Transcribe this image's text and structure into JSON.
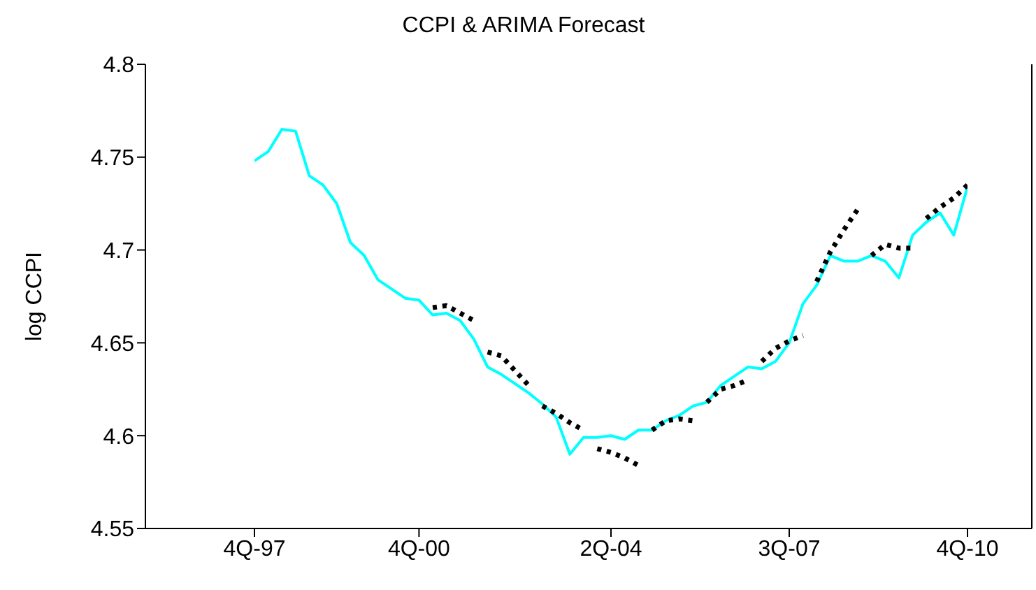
{
  "chart_data": {
    "type": "line",
    "title": "CCPI & ARIMA Forecast",
    "ylabel": "log CCPI",
    "categories": [
      "4Q-97",
      null,
      null,
      null,
      null,
      null,
      null,
      null,
      null,
      null,
      null,
      null,
      "4Q-00",
      null,
      null,
      null,
      null,
      null,
      null,
      null,
      null,
      null,
      null,
      null,
      null,
      null,
      "2Q-04",
      null,
      null,
      null,
      null,
      null,
      null,
      null,
      null,
      null,
      null,
      null,
      null,
      "3Q-07",
      null,
      null,
      null,
      null,
      null,
      null,
      null,
      null,
      null,
      null,
      null,
      null,
      "4Q-10"
    ],
    "ylim": [
      4.55,
      4.8
    ],
    "yticks": [
      4.55,
      4.6,
      4.65,
      4.7,
      4.75,
      4.8
    ],
    "grid": false,
    "marker": "none",
    "series": [
      {
        "color": "#00ffff",
        "line_style": "solid",
        "values": [
          4.748,
          4.753,
          4.765,
          4.764,
          4.74,
          4.735,
          4.725,
          4.704,
          4.697,
          4.684,
          4.679,
          4.674,
          4.673,
          4.665,
          4.666,
          4.662,
          4.652,
          4.637,
          4.633,
          4.628,
          4.623,
          4.617,
          4.61,
          4.59,
          4.599,
          4.599,
          4.6,
          4.598,
          4.603,
          4.603,
          4.608,
          4.611,
          4.616,
          4.618,
          4.627,
          4.632,
          4.637,
          4.636,
          4.64,
          4.65,
          4.671,
          4.681,
          4.697,
          4.694,
          4.694,
          4.697,
          4.694,
          4.685,
          4.708,
          4.715,
          4.72,
          4.708,
          4.734
        ]
      },
      {
        "color": "#000000",
        "line_style": "dotted",
        "values": [
          null,
          null,
          null,
          null,
          null,
          null,
          null,
          null,
          null,
          null,
          null,
          null,
          null,
          4.669,
          4.67,
          4.666,
          4.662,
          null,
          null,
          null,
          null,
          null,
          null,
          null,
          null,
          null,
          null,
          null,
          null,
          null,
          null,
          null,
          null,
          null,
          null,
          null,
          null,
          null,
          null,
          null,
          null,
          null,
          null,
          null,
          null,
          null,
          null,
          null,
          null,
          null,
          null,
          null,
          null
        ]
      },
      {
        "color": "#000000",
        "line_style": "dotted",
        "values": [
          null,
          null,
          null,
          null,
          null,
          null,
          null,
          null,
          null,
          null,
          null,
          null,
          null,
          null,
          null,
          null,
          null,
          4.645,
          4.643,
          4.635,
          4.627,
          null,
          null,
          null,
          null,
          null,
          null,
          null,
          null,
          null,
          null,
          null,
          null,
          null,
          null,
          null,
          null,
          null,
          null,
          null,
          null,
          null,
          null,
          null,
          null,
          null,
          null,
          null,
          null,
          null,
          null,
          null,
          null
        ]
      },
      {
        "color": "#000000",
        "line_style": "dotted",
        "values": [
          null,
          null,
          null,
          null,
          null,
          null,
          null,
          null,
          null,
          null,
          null,
          null,
          null,
          null,
          null,
          null,
          null,
          null,
          null,
          null,
          null,
          4.616,
          4.612,
          4.607,
          4.603,
          null,
          null,
          null,
          null,
          null,
          null,
          null,
          null,
          null,
          null,
          null,
          null,
          null,
          null,
          null,
          null,
          null,
          null,
          null,
          null,
          null,
          null,
          null,
          null,
          null,
          null,
          null,
          null
        ]
      },
      {
        "color": "#000000",
        "line_style": "dotted",
        "values": [
          null,
          null,
          null,
          null,
          null,
          null,
          null,
          null,
          null,
          null,
          null,
          null,
          null,
          null,
          null,
          null,
          null,
          null,
          null,
          null,
          null,
          null,
          null,
          null,
          null,
          4.593,
          4.591,
          4.588,
          4.584,
          null,
          null,
          null,
          null,
          null,
          null,
          null,
          null,
          null,
          null,
          null,
          null,
          null,
          null,
          null,
          null,
          null,
          null,
          null,
          null,
          null,
          null,
          null,
          null
        ]
      },
      {
        "color": "#000000",
        "line_style": "dotted",
        "values": [
          null,
          null,
          null,
          null,
          null,
          null,
          null,
          null,
          null,
          null,
          null,
          null,
          null,
          null,
          null,
          null,
          null,
          null,
          null,
          null,
          null,
          null,
          null,
          null,
          null,
          null,
          null,
          null,
          null,
          4.603,
          4.608,
          4.609,
          4.608,
          null,
          null,
          null,
          null,
          null,
          null,
          null,
          null,
          null,
          null,
          null,
          null,
          null,
          null,
          null,
          null,
          null,
          null,
          null,
          null
        ]
      },
      {
        "color": "#000000",
        "line_style": "dotted",
        "values": [
          null,
          null,
          null,
          null,
          null,
          null,
          null,
          null,
          null,
          null,
          null,
          null,
          null,
          null,
          null,
          null,
          null,
          null,
          null,
          null,
          null,
          null,
          null,
          null,
          null,
          null,
          null,
          null,
          null,
          null,
          null,
          null,
          null,
          4.618,
          4.625,
          4.627,
          4.63,
          null,
          null,
          null,
          null,
          null,
          null,
          null,
          null,
          null,
          null,
          null,
          null,
          null,
          null,
          null,
          null
        ]
      },
      {
        "color": "#000000",
        "line_style": "dotted",
        "values": [
          null,
          null,
          null,
          null,
          null,
          null,
          null,
          null,
          null,
          null,
          null,
          null,
          null,
          null,
          null,
          null,
          null,
          null,
          null,
          null,
          null,
          null,
          null,
          null,
          null,
          null,
          null,
          null,
          null,
          null,
          null,
          null,
          null,
          null,
          null,
          null,
          null,
          4.64,
          4.647,
          4.651,
          4.654,
          null,
          null,
          null,
          null,
          null,
          null,
          null,
          null,
          null,
          null,
          null,
          null
        ]
      },
      {
        "color": "#000000",
        "line_style": "dotted",
        "values": [
          null,
          null,
          null,
          null,
          null,
          null,
          null,
          null,
          null,
          null,
          null,
          null,
          null,
          null,
          null,
          null,
          null,
          null,
          null,
          null,
          null,
          null,
          null,
          null,
          null,
          null,
          null,
          null,
          null,
          null,
          null,
          null,
          null,
          null,
          null,
          null,
          null,
          null,
          null,
          null,
          null,
          4.683,
          4.699,
          4.711,
          4.722,
          null,
          null,
          null,
          null,
          null,
          null,
          null,
          null
        ]
      },
      {
        "color": "#000000",
        "line_style": "dotted",
        "values": [
          null,
          null,
          null,
          null,
          null,
          null,
          null,
          null,
          null,
          null,
          null,
          null,
          null,
          null,
          null,
          null,
          null,
          null,
          null,
          null,
          null,
          null,
          null,
          null,
          null,
          null,
          null,
          null,
          null,
          null,
          null,
          null,
          null,
          null,
          null,
          null,
          null,
          null,
          null,
          null,
          null,
          null,
          null,
          null,
          null,
          4.697,
          4.703,
          4.701,
          4.701,
          null,
          null,
          null,
          null
        ]
      },
      {
        "color": "#000000",
        "line_style": "dotted",
        "values": [
          null,
          null,
          null,
          null,
          null,
          null,
          null,
          null,
          null,
          null,
          null,
          null,
          null,
          null,
          null,
          null,
          null,
          null,
          null,
          null,
          null,
          null,
          null,
          null,
          null,
          null,
          null,
          null,
          null,
          null,
          null,
          null,
          null,
          null,
          null,
          null,
          null,
          null,
          null,
          null,
          null,
          null,
          null,
          null,
          null,
          null,
          null,
          null,
          null,
          4.717,
          4.723,
          4.728,
          4.735
        ]
      }
    ]
  }
}
